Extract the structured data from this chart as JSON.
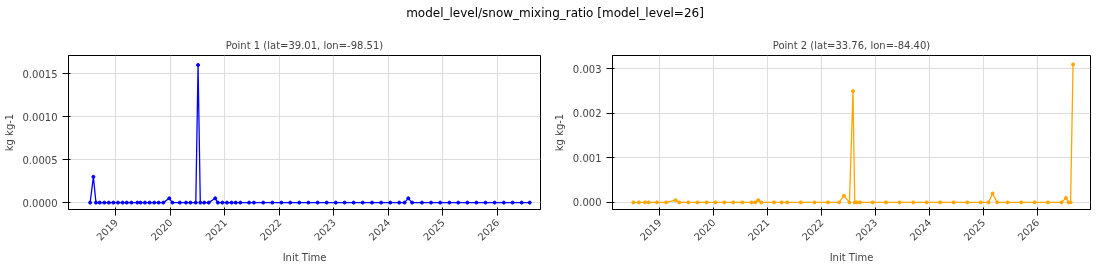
{
  "chart_data": [
    {
      "type": "line",
      "title": "Point 1 (lat=39.01, lon=-98.51)",
      "annotations": [
        "model_level/snow_mixing_ratio [model_level=26]"
      ],
      "xlabel": "Init Time",
      "ylabel": "kg kg-1",
      "marker": "circle",
      "line_style": "solid",
      "grid": true,
      "xlim": [
        "2018-02-17",
        "2026-10-19"
      ],
      "xticks": [
        {
          "value": "2019-01-01",
          "label": "2019"
        },
        {
          "value": "2020-01-01",
          "label": "2020"
        },
        {
          "value": "2021-01-01",
          "label": "2021"
        },
        {
          "value": "2022-01-01",
          "label": "2022"
        },
        {
          "value": "2023-01-01",
          "label": "2023"
        },
        {
          "value": "2024-01-01",
          "label": "2024"
        },
        {
          "value": "2025-01-01",
          "label": "2025"
        },
        {
          "value": "2026-01-01",
          "label": "2026"
        }
      ],
      "ylim": [
        -8e-05,
        0.00171
      ],
      "yticks": [
        {
          "value": 0,
          "label": "0.0000"
        },
        {
          "value": 0.0005,
          "label": "0.0005"
        },
        {
          "value": 0.001,
          "label": "0.0010"
        },
        {
          "value": 0.0015,
          "label": "0.0015"
        }
      ],
      "x": [
        "2018-07-12",
        "2018-08-03",
        "2018-08-20",
        "2018-09-15",
        "2018-10-15",
        "2018-11-15",
        "2018-12-15",
        "2019-01-15",
        "2019-02-15",
        "2019-03-15",
        "2019-04-15",
        "2019-05-25",
        "2019-06-15",
        "2019-07-15",
        "2019-08-15",
        "2019-09-15",
        "2019-10-15",
        "2019-11-15",
        "2019-12-25",
        "2020-01-15",
        "2020-03-05",
        "2020-04-15",
        "2020-05-15",
        "2020-06-20",
        "2020-07-05",
        "2020-07-20",
        "2020-08-15",
        "2020-09-15",
        "2020-10-28",
        "2020-11-15",
        "2020-12-15",
        "2021-01-15",
        "2021-02-15",
        "2021-03-15",
        "2021-04-15",
        "2021-06-12",
        "2021-07-15",
        "2021-09-15",
        "2021-11-15",
        "2022-01-15",
        "2022-03-15",
        "2022-05-15",
        "2022-07-15",
        "2022-09-15",
        "2022-11-15",
        "2023-01-15",
        "2023-03-15",
        "2023-05-15",
        "2023-07-15",
        "2023-09-15",
        "2023-11-15",
        "2024-01-15",
        "2024-03-15",
        "2024-04-20",
        "2024-05-15",
        "2024-06-10",
        "2024-08-15",
        "2024-10-15",
        "2024-12-15",
        "2025-02-15",
        "2025-04-15",
        "2025-06-15",
        "2025-08-15",
        "2025-10-15",
        "2025-12-15",
        "2026-02-15",
        "2026-04-15",
        "2026-06-15",
        "2026-08-08"
      ],
      "series": [
        {
          "color": "#0000ff",
          "values": [
            0,
            0.0003,
            0,
            0,
            0,
            0,
            0,
            0,
            0,
            0,
            0,
            0,
            0,
            0,
            0,
            0,
            0,
            0,
            5e-05,
            0,
            0,
            0,
            0,
            0,
            0.0016,
            0,
            0,
            0,
            5e-05,
            0,
            0,
            0,
            0,
            0,
            0,
            0,
            0,
            0,
            0,
            0,
            0,
            0,
            0,
            0,
            0,
            0,
            0,
            0,
            0,
            0,
            0,
            0,
            0,
            0,
            5e-05,
            0,
            0,
            0,
            0,
            0,
            0,
            0,
            0,
            0,
            0,
            0,
            0,
            0,
            0
          ]
        }
      ]
    },
    {
      "type": "line",
      "title": "Point 2 (lat=33.76, lon=-84.40)",
      "xlabel": "Init Time",
      "ylabel": "kg kg-1",
      "marker": "circle",
      "line_style": "solid",
      "grid": true,
      "xlim": [
        "2018-02-17",
        "2026-12-28"
      ],
      "xticks": [
        {
          "value": "2019-01-01",
          "label": "2019"
        },
        {
          "value": "2020-01-01",
          "label": "2020"
        },
        {
          "value": "2021-01-01",
          "label": "2021"
        },
        {
          "value": "2022-01-01",
          "label": "2022"
        },
        {
          "value": "2023-01-01",
          "label": "2023"
        },
        {
          "value": "2024-01-01",
          "label": "2024"
        },
        {
          "value": "2025-01-01",
          "label": "2025"
        },
        {
          "value": "2026-01-01",
          "label": "2026"
        }
      ],
      "ylim": [
        -0.00016,
        0.0033
      ],
      "yticks": [
        {
          "value": 0,
          "label": "0.000"
        },
        {
          "value": 0.001,
          "label": "0.001"
        },
        {
          "value": 0.002,
          "label": "0.002"
        },
        {
          "value": 0.003,
          "label": "0.003"
        }
      ],
      "x": [
        "2018-07-08",
        "2018-08-15",
        "2018-09-25",
        "2018-10-20",
        "2018-12-15",
        "2019-02-15",
        "2019-04-20",
        "2019-05-15",
        "2019-07-15",
        "2019-09-15",
        "2019-11-15",
        "2020-01-15",
        "2020-03-15",
        "2020-05-15",
        "2020-07-15",
        "2020-09-15",
        "2020-10-10",
        "2020-10-30",
        "2020-11-20",
        "2021-02-15",
        "2021-04-08",
        "2021-05-15",
        "2021-08-15",
        "2021-11-15",
        "2022-02-15",
        "2022-05-01",
        "2022-06-03",
        "2022-07-10",
        "2022-08-03",
        "2022-08-15",
        "2022-08-30",
        "2022-09-20",
        "2022-12-15",
        "2023-03-15",
        "2023-06-15",
        "2023-09-15",
        "2023-12-15",
        "2024-03-15",
        "2024-06-15",
        "2024-09-15",
        "2024-12-15",
        "2025-02-05",
        "2025-03-05",
        "2025-04-05",
        "2025-06-15",
        "2025-09-15",
        "2025-12-15",
        "2026-03-15",
        "2026-06-15",
        "2026-07-15",
        "2026-08-01",
        "2026-08-15",
        "2026-09-01"
      ],
      "series": [
        {
          "color": "#ffa500",
          "values": [
            0,
            0,
            0,
            0,
            0,
            0,
            5e-05,
            0,
            0,
            0,
            0,
            0,
            0,
            0,
            0,
            0,
            0,
            5e-05,
            0,
            0,
            0,
            0,
            0,
            0,
            0,
            0,
            0.00015,
            0,
            0.0025,
            0,
            0,
            0,
            0,
            0,
            0,
            0,
            0,
            0,
            0,
            0,
            0,
            0,
            0.0002,
            0,
            0,
            0,
            0,
            0,
            0,
            0.0001,
            0,
            0,
            0.0031
          ]
        }
      ]
    }
  ]
}
